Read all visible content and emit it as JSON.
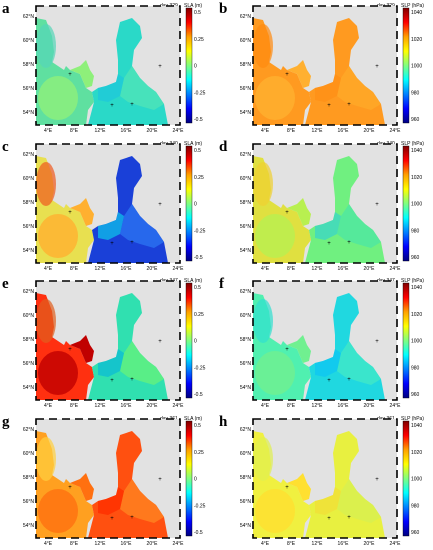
{
  "panels": [
    {
      "label": "a",
      "day": "day 329",
      "cb_title": "SLA (m)",
      "cb_ticks": [
        "0.5",
        "0.25",
        "0",
        "-0.25",
        "-0.5"
      ],
      "kind": "sla",
      "state": "mixed"
    },
    {
      "label": "b",
      "day": "day 329",
      "cb_title": "SLP (hPa)",
      "cb_ticks": [
        "1040",
        "1020",
        "1000",
        "980",
        "960"
      ],
      "kind": "slp",
      "state": "orange"
    },
    {
      "label": "c",
      "day": "day 340",
      "cb_title": "SLA (m)",
      "cb_ticks": [
        "0.5",
        "0.25",
        "0",
        "-0.25",
        "-0.5"
      ],
      "kind": "sla",
      "state": "lowbaltic"
    },
    {
      "label": "d",
      "day": "day 340",
      "cb_title": "SLP (hPa)",
      "cb_ticks": [
        "1040",
        "1020",
        "1000",
        "980",
        "960"
      ],
      "kind": "slp",
      "state": "yellowgreen"
    },
    {
      "label": "e",
      "day": "day 347",
      "cb_title": "SLA (m)",
      "cb_ticks": [
        "0.5",
        "0.25",
        "0",
        "-0.25",
        "-0.5"
      ],
      "kind": "sla",
      "state": "highnorthsea"
    },
    {
      "label": "f",
      "day": "day 347",
      "cb_title": "SLP (hPa)",
      "cb_ticks": [
        "1040",
        "1020",
        "1000",
        "980",
        "960"
      ],
      "kind": "slp",
      "state": "cyan"
    },
    {
      "label": "g",
      "day": "day 361",
      "cb_title": "SLA (m)",
      "cb_ticks": [
        "0.5",
        "0.25",
        "0",
        "-0.25",
        "-0.5"
      ],
      "kind": "sla",
      "state": "high"
    },
    {
      "label": "h",
      "day": "day 361",
      "cb_title": "SLP (hPa)",
      "cb_ticks": [
        "1040",
        "1020",
        "1000",
        "980",
        "960"
      ],
      "kind": "slp",
      "state": "yellow"
    }
  ],
  "lat_ticks": [
    "62°N",
    "60°N",
    "58°N",
    "56°N",
    "54°N"
  ],
  "lon_ticks": [
    "4°E",
    "8°E",
    "12°E",
    "16°E",
    "20°E",
    "24°E"
  ],
  "colors": {
    "land": "#e2e2e2",
    "frame": "#000000"
  }
}
